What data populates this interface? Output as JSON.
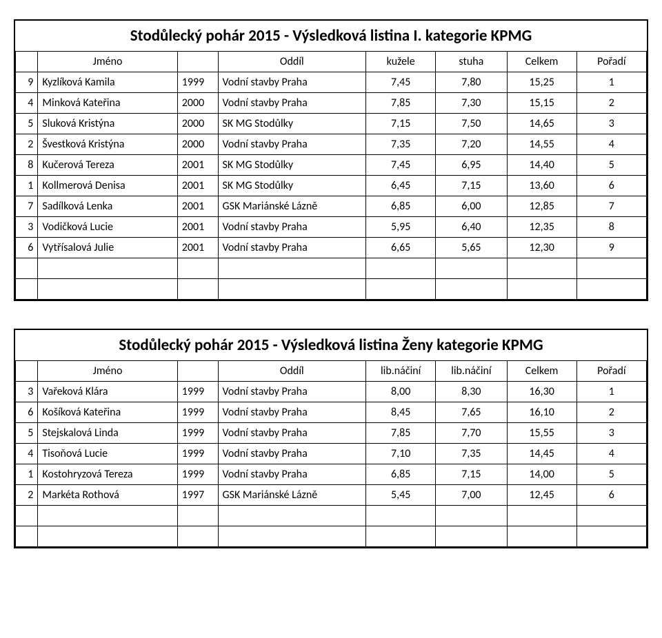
{
  "table1": {
    "title": "Stodůlecký pohár 2015 - Výsledková listina I. kategorie KPMG",
    "headers": {
      "jmeno": "Jméno",
      "oddil": "Oddíl",
      "s1": "kužele",
      "s2": "stuha",
      "total": "Celkem",
      "rank": "Pořadí"
    },
    "rows": [
      {
        "n": "9",
        "name": "Kyzlíková Kamila",
        "year": "1999",
        "club": "Vodní stavby Praha",
        "s1": "7,45",
        "s2": "7,80",
        "total": "15,25",
        "rank": "1"
      },
      {
        "n": "4",
        "name": "Minková Kateřina",
        "year": "2000",
        "club": "Vodní stavby Praha",
        "s1": "7,85",
        "s2": "7,30",
        "total": "15,15",
        "rank": "2"
      },
      {
        "n": "5",
        "name": "Sluková Kristýna",
        "year": "2000",
        "club": "SK MG Stodůlky",
        "s1": "7,15",
        "s2": "7,50",
        "total": "14,65",
        "rank": "3"
      },
      {
        "n": "2",
        "name": "Švestková Kristýna",
        "year": "2000",
        "club": "Vodní stavby Praha",
        "s1": "7,35",
        "s2": "7,20",
        "total": "14,55",
        "rank": "4"
      },
      {
        "n": "8",
        "name": "Kučerová Tereza",
        "year": "2001",
        "club": "SK MG Stodůlky",
        "s1": "7,45",
        "s2": "6,95",
        "total": "14,40",
        "rank": "5"
      },
      {
        "n": "1",
        "name": "Kollmerová Denisa",
        "year": "2001",
        "club": "SK MG Stodůlky",
        "s1": "6,45",
        "s2": "7,15",
        "total": "13,60",
        "rank": "6"
      },
      {
        "n": "7",
        "name": "Sadílková Lenka",
        "year": "2001",
        "club": "GSK Mariánské Lázně",
        "s1": "6,85",
        "s2": "6,00",
        "total": "12,85",
        "rank": "7"
      },
      {
        "n": "3",
        "name": "Vodičková Lucie",
        "year": "2001",
        "club": "Vodní stavby Praha",
        "s1": "5,95",
        "s2": "6,40",
        "total": "12,35",
        "rank": "8"
      },
      {
        "n": "6",
        "name": "Vytřísalová Julie",
        "year": "2001",
        "club": "Vodní stavby Praha",
        "s1": "6,65",
        "s2": "5,65",
        "total": "12,30",
        "rank": "9"
      }
    ],
    "empty_rows": 2
  },
  "table2": {
    "title": "Stodůlecký pohár 2015 - Výsledková listina Ženy kategorie KPMG",
    "headers": {
      "jmeno": "Jméno",
      "oddil": "Oddíl",
      "s1": "lib.náčiní",
      "s2": "lib.náčiní",
      "total": "Celkem",
      "rank": "Pořadí"
    },
    "rows": [
      {
        "n": "3",
        "name": "Vařeková Klára",
        "year": "1999",
        "club": "Vodní stavby Praha",
        "s1": "8,00",
        "s2": "8,30",
        "total": "16,30",
        "rank": "1"
      },
      {
        "n": "6",
        "name": "Košíková Kateřina",
        "year": "1999",
        "club": "Vodní stavby Praha",
        "s1": "8,45",
        "s2": "7,65",
        "total": "16,10",
        "rank": "2"
      },
      {
        "n": "5",
        "name": "Stejskalová Linda",
        "year": "1999",
        "club": "Vodní stavby Praha",
        "s1": "7,85",
        "s2": "7,70",
        "total": "15,55",
        "rank": "3"
      },
      {
        "n": "4",
        "name": "Tisoňová Lucie",
        "year": "1999",
        "club": "Vodní stavby Praha",
        "s1": "7,10",
        "s2": "7,35",
        "total": "14,45",
        "rank": "4"
      },
      {
        "n": "1",
        "name": "Kostohryzová Tereza",
        "year": "1999",
        "club": "Vodní stavby Praha",
        "s1": "6,85",
        "s2": "7,15",
        "total": "14,00",
        "rank": "5"
      },
      {
        "n": "2",
        "name": "Markéta Rothová",
        "year": "1997",
        "club": "GSK Mariánské Lázně",
        "s1": "5,45",
        "s2": "7,00",
        "total": "12,45",
        "rank": "6"
      }
    ],
    "empty_rows": 2
  },
  "colors": {
    "bg": "#ffffff",
    "border": "#000000",
    "text": "#000000"
  }
}
